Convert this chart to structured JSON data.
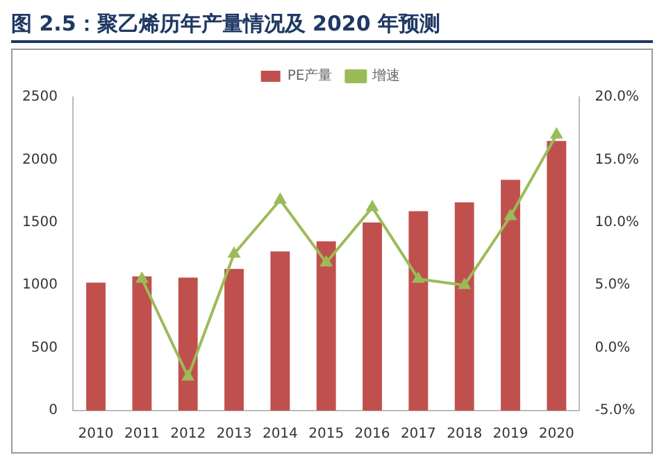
{
  "chart_data": {
    "type": "bar",
    "title": "图 2.5：聚乙烯历年产量情况及 2020 年预测",
    "categories": [
      "2010",
      "2011",
      "2012",
      "2013",
      "2014",
      "2015",
      "2016",
      "2017",
      "2018",
      "2019",
      "2020"
    ],
    "series": [
      {
        "name": "PE产量",
        "color": "#c0504d",
        "values": [
          1020,
          1070,
          1060,
          1130,
          1270,
          1350,
          1500,
          1590,
          1660,
          1840,
          2150
        ]
      },
      {
        "name": "增速",
        "type": "line",
        "axis": "y2",
        "color": "#9bbb59",
        "marker": "triangle",
        "values": [
          null,
          5.5,
          -2.3,
          7.5,
          11.8,
          6.8,
          11.2,
          5.5,
          5.0,
          10.5,
          17.0
        ]
      }
    ],
    "ylim": [
      0,
      2500
    ],
    "yticks": [
      0,
      500,
      1000,
      1500,
      2000,
      2500
    ],
    "y2lim": [
      -5,
      20
    ],
    "y2ticks": [
      {
        "value": -5,
        "label": "-5.0%"
      },
      {
        "value": 0,
        "label": "0.0%"
      },
      {
        "value": 5,
        "label": "5.0%"
      },
      {
        "value": 10,
        "label": "10.0%"
      },
      {
        "value": 15,
        "label": "15.0%"
      },
      {
        "value": 20,
        "label": "20.0%"
      }
    ],
    "legend": "top",
    "grid": false
  }
}
